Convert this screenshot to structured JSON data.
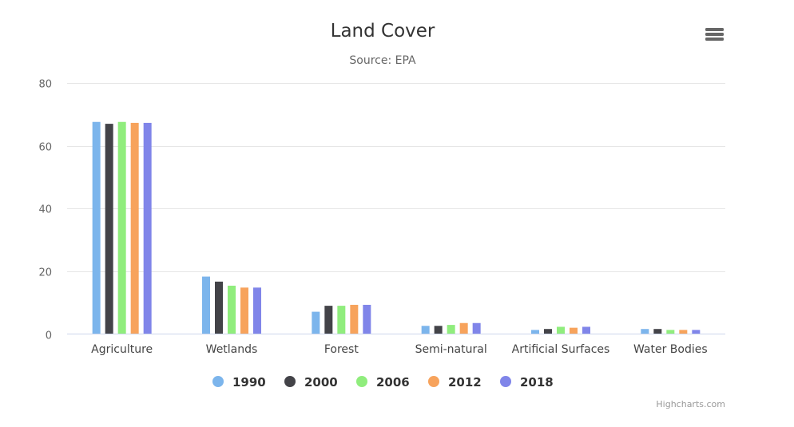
{
  "chart_data": {
    "type": "bar",
    "title": "Land Cover",
    "subtitle": "Source: EPA",
    "xlabel": "",
    "ylabel": "",
    "ylim": [
      0,
      80
    ],
    "yticks": [
      0,
      20,
      40,
      60,
      80
    ],
    "grid": true,
    "legend_position": "bottom-center",
    "categories": [
      "Agriculture",
      "Wetlands",
      "Forest",
      "Semi-natural",
      "Artificial Surfaces",
      "Water Bodies"
    ],
    "series": [
      {
        "name": "1990",
        "color": "#7cb5ec",
        "values": [
          67.6,
          18.3,
          7.1,
          2.6,
          1.3,
          1.6
        ]
      },
      {
        "name": "2000",
        "color": "#434348",
        "values": [
          67.0,
          16.7,
          9.0,
          2.6,
          1.6,
          1.6
        ]
      },
      {
        "name": "2006",
        "color": "#90ed7d",
        "values": [
          67.6,
          15.4,
          9.0,
          2.9,
          2.3,
          1.3
        ]
      },
      {
        "name": "2012",
        "color": "#f7a35c",
        "values": [
          67.3,
          14.8,
          9.3,
          3.5,
          2.0,
          1.3
        ]
      },
      {
        "name": "2018",
        "color": "#8085e9",
        "values": [
          67.3,
          14.8,
          9.3,
          3.5,
          2.3,
          1.3
        ]
      }
    ]
  },
  "menu": {
    "icon": "hamburger-menu-icon"
  },
  "credits": "Highcharts.com"
}
